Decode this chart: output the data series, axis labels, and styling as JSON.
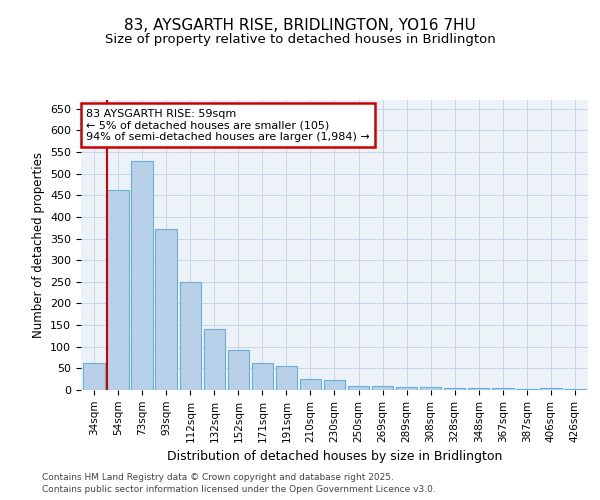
{
  "title_line1": "83, AYSGARTH RISE, BRIDLINGTON, YO16 7HU",
  "title_line2": "Size of property relative to detached houses in Bridlington",
  "xlabel": "Distribution of detached houses by size in Bridlington",
  "ylabel": "Number of detached properties",
  "footer_line1": "Contains HM Land Registry data © Crown copyright and database right 2025.",
  "footer_line2": "Contains public sector information licensed under the Open Government Licence v3.0.",
  "categories": [
    "34sqm",
    "54sqm",
    "73sqm",
    "93sqm",
    "112sqm",
    "132sqm",
    "152sqm",
    "171sqm",
    "191sqm",
    "210sqm",
    "230sqm",
    "250sqm",
    "269sqm",
    "289sqm",
    "308sqm",
    "328sqm",
    "348sqm",
    "367sqm",
    "387sqm",
    "406sqm",
    "426sqm"
  ],
  "values": [
    62,
    462,
    528,
    372,
    249,
    141,
    93,
    62,
    55,
    26,
    24,
    10,
    10,
    7,
    8,
    5,
    5,
    4,
    3,
    4,
    3
  ],
  "bar_color": "#b8d0e8",
  "bar_edge_color": "#6baed6",
  "ylim": [
    0,
    670
  ],
  "yticks": [
    0,
    50,
    100,
    150,
    200,
    250,
    300,
    350,
    400,
    450,
    500,
    550,
    600,
    650
  ],
  "vline_x_index": 1,
  "vline_color": "#cc0000",
  "annotation_line1": "83 AYSGARTH RISE: 59sqm",
  "annotation_line2": "← 5% of detached houses are smaller (105)",
  "annotation_line3": "94% of semi-detached houses are larger (1,984) →",
  "annotation_box_color": "#ffffff",
  "annotation_box_edge": "#cc0000",
  "bg_color": "#edf2f9",
  "grid_color": "#c5d5e8",
  "title1_fontsize": 11,
  "title2_fontsize": 9.5
}
